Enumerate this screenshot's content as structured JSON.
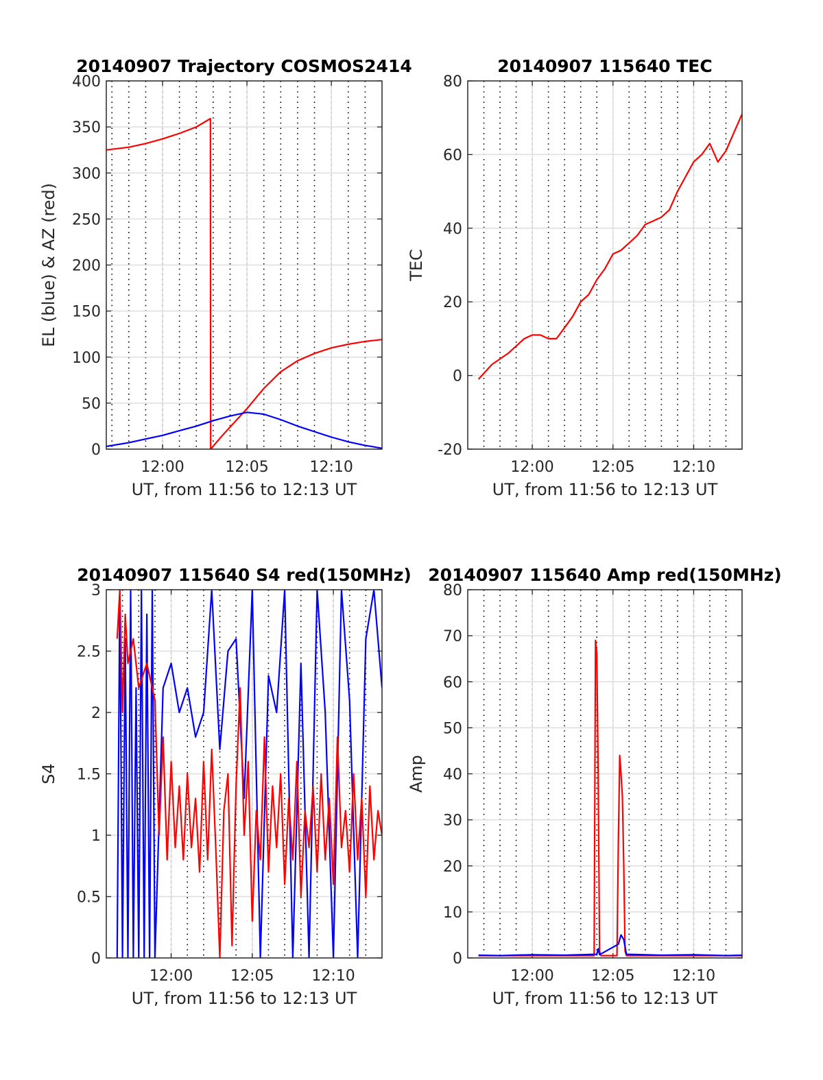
{
  "chart_data": [
    {
      "type": "line",
      "title": "20140907 Trajectory COSMOS2414",
      "xlabel": "UT, from 11:56 to 12:13 UT",
      "ylabel": "EL (blue) & AZ (red)",
      "xlim": [
        "11:56:40",
        "12:13:00"
      ],
      "ylim": [
        0,
        400
      ],
      "xticks": [
        "12:00",
        "12:05",
        "12:10"
      ],
      "yticks": [
        "0",
        "50",
        "100",
        "150",
        "200",
        "250",
        "300",
        "350",
        "400"
      ],
      "grid": true,
      "series": [
        {
          "color": "#ff0000",
          "x": [
            "11:56:40",
            "11:58:00",
            "11:59:00",
            "12:00:00",
            "12:01:00",
            "12:02:00",
            "12:02:50",
            "12:02:51",
            "12:03:30",
            "12:04:00",
            "12:04:30",
            "12:05:00",
            "12:05:30",
            "12:06:00",
            "12:07:00",
            "12:08:00",
            "12:09:00",
            "12:10:00",
            "12:11:00",
            "12:12:00",
            "12:13:00"
          ],
          "values": [
            325,
            328,
            332,
            337,
            343,
            350,
            359,
            0,
            14,
            24,
            34,
            44,
            55,
            66,
            84,
            96,
            104,
            110,
            114,
            117,
            119
          ]
        },
        {
          "color": "#0000ff",
          "x": [
            "11:56:40",
            "11:58:00",
            "11:59:00",
            "12:00:00",
            "12:01:00",
            "12:02:00",
            "12:03:00",
            "12:04:00",
            "12:05:00",
            "12:06:00",
            "12:07:00",
            "12:08:00",
            "12:09:00",
            "12:10:00",
            "12:11:00",
            "12:12:00",
            "12:13:00"
          ],
          "values": [
            3,
            7,
            11,
            15,
            20,
            25,
            31,
            36,
            40,
            38,
            32,
            25,
            19,
            13,
            8,
            4,
            1
          ]
        }
      ]
    },
    {
      "type": "line",
      "title": "20140907 115640 TEC",
      "xlabel": "UT, from 11:56 to 12:13 UT",
      "ylabel": "TEC",
      "xlim": [
        "11:56:00",
        "12:13:00"
      ],
      "ylim": [
        -20,
        80
      ],
      "xticks": [
        "12:00",
        "12:05",
        "12:10"
      ],
      "yticks": [
        "-20",
        "0",
        "20",
        "40",
        "60",
        "80"
      ],
      "grid": true,
      "series": [
        {
          "color": "#ff0000",
          "x": [
            "11:56:40",
            "11:57:30",
            "11:58:30",
            "11:59:30",
            "12:00:00",
            "12:00:30",
            "12:01:00",
            "12:01:30",
            "12:02:00",
            "12:02:30",
            "12:03:00",
            "12:03:30",
            "12:04:00",
            "12:04:30",
            "12:05:00",
            "12:05:30",
            "12:06:00",
            "12:06:30",
            "12:07:00",
            "12:07:30",
            "12:08:00",
            "12:08:30",
            "12:09:00",
            "12:09:30",
            "12:10:00",
            "12:10:30",
            "12:11:00",
            "12:11:30",
            "12:12:00",
            "12:12:30",
            "12:13:00"
          ],
          "values": [
            -1,
            3,
            6,
            10,
            11,
            11,
            10,
            10,
            13,
            16,
            20,
            22,
            26,
            29,
            33,
            34,
            36,
            38,
            41,
            42,
            43,
            45,
            50,
            54,
            58,
            60,
            63,
            58,
            61,
            66,
            71
          ]
        }
      ]
    },
    {
      "type": "line",
      "title": "20140907 115640 S4 red(150MHz)",
      "xlabel": "UT, from 11:56 to 12:13 UT",
      "ylabel": "S4",
      "xlim": [
        "11:56:00",
        "12:13:00"
      ],
      "ylim": [
        0,
        3
      ],
      "xticks": [
        "12:00",
        "12:05",
        "12:10"
      ],
      "yticks": [
        "0",
        "0.5",
        "1",
        "1.5",
        "2",
        "2.5",
        "3"
      ],
      "grid": true,
      "series": [
        {
          "color": "#0000ff",
          "x": [
            "11:56:40",
            "11:56:50",
            "11:57:00",
            "11:57:10",
            "11:57:20",
            "11:57:30",
            "11:57:40",
            "11:57:50",
            "11:58:00",
            "11:58:10",
            "11:58:20",
            "11:58:30",
            "11:58:40",
            "11:58:50",
            "11:59:00",
            "11:59:30",
            "12:00:00",
            "12:00:30",
            "12:01:00",
            "12:01:30",
            "12:02:00",
            "12:02:30",
            "12:03:00",
            "12:03:30",
            "12:04:00",
            "12:04:30",
            "12:05:00",
            "12:05:30",
            "12:06:00",
            "12:06:30",
            "12:07:00",
            "12:07:30",
            "12:08:00",
            "12:08:30",
            "12:09:00",
            "12:09:30",
            "12:10:00",
            "12:10:30",
            "12:11:00",
            "12:11:30",
            "12:12:00",
            "12:12:30",
            "12:13:00"
          ],
          "values": [
            0.0,
            3.0,
            0.0,
            2.6,
            0.0,
            3.0,
            0.0,
            2.2,
            0.0,
            3.0,
            0.0,
            2.8,
            0.0,
            3.0,
            0.0,
            2.2,
            2.4,
            2.0,
            2.2,
            1.8,
            2.0,
            3.0,
            1.7,
            2.5,
            2.6,
            1.3,
            3.0,
            0.0,
            2.3,
            2.0,
            3.0,
            0.0,
            2.4,
            0.0,
            3.0,
            2.0,
            0.0,
            3.0,
            2.1,
            0.0,
            2.6,
            3.0,
            2.2
          ]
        },
        {
          "color": "#ff0000",
          "x": [
            "11:56:40",
            "11:56:50",
            "11:57:00",
            "11:57:10",
            "11:57:20",
            "11:57:40",
            "11:58:00",
            "11:58:30",
            "11:59:00",
            "11:59:15",
            "11:59:30",
            "11:59:45",
            "12:00:00",
            "12:00:15",
            "12:00:30",
            "12:00:45",
            "12:01:00",
            "12:01:15",
            "12:01:30",
            "12:01:45",
            "12:02:00",
            "12:02:15",
            "12:02:30",
            "12:02:45",
            "12:03:00",
            "12:03:15",
            "12:03:30",
            "12:03:45",
            "12:04:00",
            "12:04:15",
            "12:04:30",
            "12:04:45",
            "12:05:00",
            "12:05:15",
            "12:05:30",
            "12:05:45",
            "12:06:00",
            "12:06:15",
            "12:06:30",
            "12:06:45",
            "12:07:00",
            "12:07:15",
            "12:07:30",
            "12:07:45",
            "12:08:00",
            "12:08:15",
            "12:08:30",
            "12:08:45",
            "12:09:00",
            "12:09:15",
            "12:09:30",
            "12:09:45",
            "12:10:00",
            "12:10:15",
            "12:10:30",
            "12:10:45",
            "12:11:00",
            "12:11:15",
            "12:11:30",
            "12:11:45",
            "12:12:00",
            "12:12:15",
            "12:12:30",
            "12:12:45",
            "12:13:00"
          ],
          "values": [
            2.6,
            3.0,
            2.0,
            2.8,
            2.4,
            2.6,
            2.2,
            2.4,
            2.1,
            1.0,
            1.8,
            0.8,
            1.6,
            0.9,
            1.4,
            0.8,
            1.5,
            0.9,
            1.3,
            0.7,
            1.6,
            0.8,
            1.7,
            0.9,
            0.0,
            1.2,
            1.5,
            0.1,
            1.4,
            2.2,
            1.0,
            1.6,
            0.3,
            1.2,
            0.8,
            1.8,
            0.7,
            1.4,
            0.9,
            1.5,
            0.6,
            1.3,
            0.8,
            1.6,
            0.5,
            1.2,
            0.9,
            1.4,
            0.7,
            1.5,
            0.8,
            1.3,
            0.6,
            1.8,
            0.9,
            1.2,
            0.7,
            1.5,
            0.8,
            1.3,
            0.5,
            1.4,
            0.8,
            1.2,
            1.0
          ]
        }
      ]
    },
    {
      "type": "line",
      "title": "20140907 115640 Amp red(150MHz)",
      "xlabel": "UT, from 11:56 to 12:13 UT",
      "ylabel": "Amp",
      "xlim": [
        "11:56:00",
        "12:13:00"
      ],
      "ylim": [
        0,
        80
      ],
      "xticks": [
        "12:00",
        "12:05",
        "12:10"
      ],
      "yticks": [
        "0",
        "10",
        "20",
        "30",
        "40",
        "50",
        "60",
        "70",
        "80"
      ],
      "grid": true,
      "series": [
        {
          "color": "#ff0000",
          "x": [
            "11:56:40",
            "12:03:50",
            "12:03:55",
            "12:04:00",
            "12:04:05",
            "12:04:10",
            "12:04:15",
            "12:05:15",
            "12:05:20",
            "12:05:25",
            "12:05:30",
            "12:05:35",
            "12:05:40",
            "12:05:45",
            "12:05:50",
            "12:13:00"
          ],
          "values": [
            0.5,
            0.5,
            69,
            66,
            40,
            1.5,
            0.5,
            0.5,
            25,
            44,
            40,
            35,
            20,
            1.5,
            0.5,
            0.5
          ]
        },
        {
          "color": "#0000ff",
          "x": [
            "11:56:40",
            "11:58:00",
            "12:00:00",
            "12:02:00",
            "12:04:00",
            "12:04:05",
            "12:04:10",
            "12:05:20",
            "12:05:30",
            "12:05:40",
            "12:05:50",
            "12:08:00",
            "12:10:00",
            "12:12:00",
            "12:13:00"
          ],
          "values": [
            0.6,
            0.5,
            0.7,
            0.6,
            0.8,
            2,
            0.7,
            3,
            5,
            4,
            0.8,
            0.6,
            0.7,
            0.5,
            0.6
          ]
        }
      ]
    }
  ]
}
